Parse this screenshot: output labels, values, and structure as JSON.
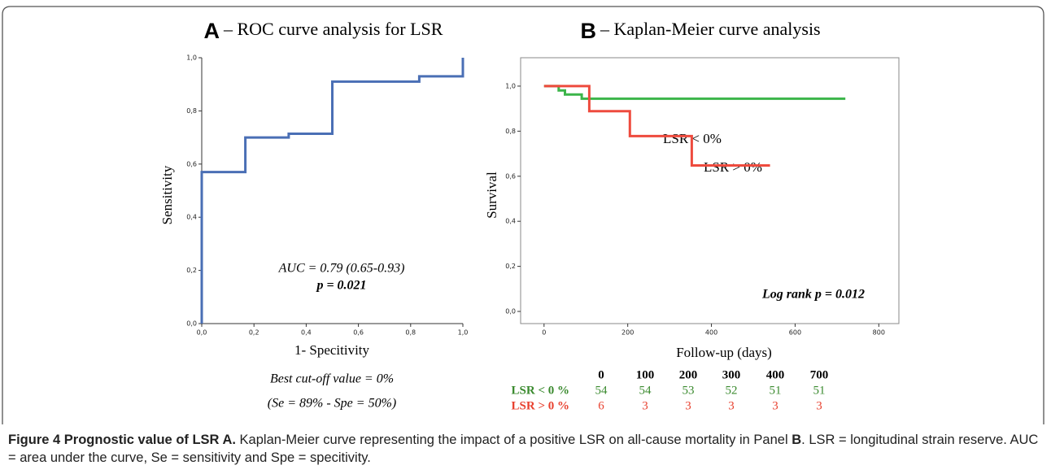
{
  "chart_data": [
    {
      "type": "line",
      "panel_label": "A",
      "title": "– ROC curve analysis for LSR",
      "x_label": "1- Specitivity",
      "y_label": "Sensitivity",
      "color": "#4a6fb5",
      "x": [
        0,
        0,
        0.167,
        0.167,
        0.333,
        0.333,
        0.5,
        0.5,
        0.833,
        0.833,
        1,
        1
      ],
      "values": [
        0,
        0.57,
        0.57,
        0.7,
        0.7,
        0.714,
        0.714,
        0.91,
        0.91,
        0.93,
        0.93,
        1
      ],
      "xlim": [
        0,
        1
      ],
      "ylim": [
        0,
        1
      ],
      "xticks": [
        {
          "value": 0,
          "label": "0,0"
        },
        {
          "value": 0.2,
          "label": "0,2"
        },
        {
          "value": 0.4,
          "label": "0,4"
        },
        {
          "value": 0.6,
          "label": "0,6"
        },
        {
          "value": 0.8,
          "label": "0,8"
        },
        {
          "value": 1,
          "label": "1,0"
        }
      ],
      "yticks": [
        {
          "value": 0,
          "label": "0,0"
        },
        {
          "value": 0.2,
          "label": "0,2"
        },
        {
          "value": 0.4,
          "label": "0,4"
        },
        {
          "value": 0.6,
          "label": "0,6"
        },
        {
          "value": 0.8,
          "label": "0,8"
        },
        {
          "value": 1,
          "label": "1,0"
        }
      ],
      "annotations": [
        "AUC = 0.79 (0.65-0.93)",
        "p = 0.021",
        "Best cut-off value = 0%",
        "(Se = 89% - Spe = 50%)"
      ]
    },
    {
      "type": "line",
      "panel_label": "B",
      "title": "– Kaplan-Meier curve analysis",
      "x_label": "Follow-up (days)",
      "y_label": "Survival",
      "series": [
        {
          "name": "LSR < 0%",
          "color": "#3cb54a",
          "x": [
            0,
            35,
            35,
            50,
            50,
            90,
            90,
            720
          ],
          "values": [
            1,
            1,
            0.981,
            0.981,
            0.963,
            0.963,
            0.944,
            0.944
          ]
        },
        {
          "name": "LSR > 0%",
          "color": "#ee4b3e",
          "x": [
            0,
            108,
            108,
            205,
            205,
            353,
            353,
            540
          ],
          "values": [
            1,
            1,
            0.889,
            0.889,
            0.778,
            0.778,
            0.648,
            0.648
          ]
        }
      ],
      "xlim": [
        -56,
        848
      ],
      "ylim": [
        -0.054,
        1.126
      ],
      "xticks": [
        0,
        200,
        400,
        600,
        800
      ],
      "yticks": [
        {
          "value": 0,
          "label": "0,0"
        },
        {
          "value": 0.2,
          "label": "0,2"
        },
        {
          "value": 0.4,
          "label": "0,4"
        },
        {
          "value": 0.6,
          "label": "0,6"
        },
        {
          "value": 0.8,
          "label": "0,8"
        },
        {
          "value": 1,
          "label": "1,0"
        }
      ],
      "annotations": [
        "Log rank p = 0.012"
      ],
      "risk_table": {
        "times": [
          0,
          100,
          200,
          300,
          400,
          700
        ],
        "rows": [
          {
            "name": "LSR < 0 %",
            "color": "#3a8a2e",
            "values": [
              54,
              54,
              53,
              52,
              51,
              51
            ]
          },
          {
            "name": "LSR > 0 %",
            "color": "#e8412f",
            "values": [
              6,
              3,
              3,
              3,
              3,
              3
            ]
          }
        ]
      }
    }
  ],
  "caption": {
    "label": "Figure 4",
    "title": "Prognostic value of LSR A.",
    "text1": "Kaplan-Meier curve representing the impact of a positive LSR on all-cause mortality in Panel",
    "panel": "B",
    "text2": ". LSR = longitudinal strain reserve. AUC = area under the curve, Se = sensitivity and Spe = specitivity."
  }
}
